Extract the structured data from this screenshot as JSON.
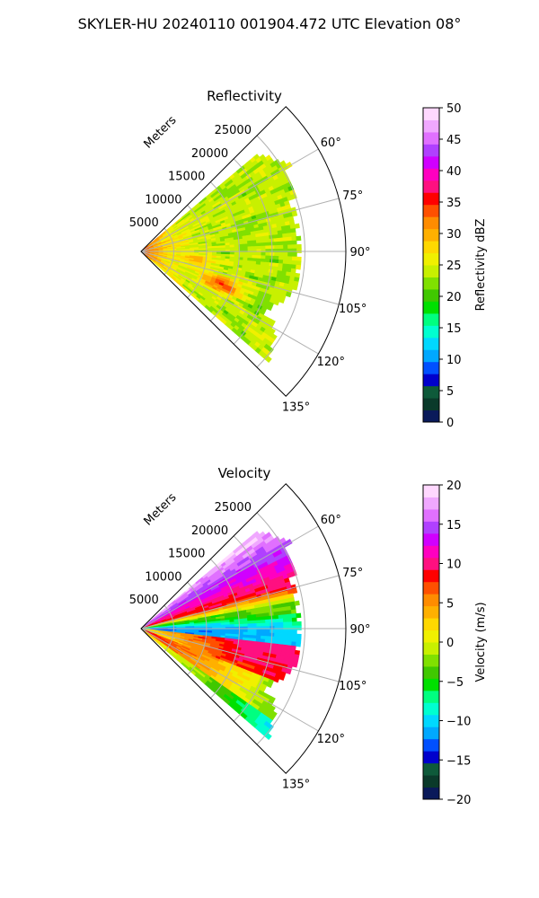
{
  "figure": {
    "suptitle": "SKYLER-HU  20240110  001904.472 UTC Elevation 08°"
  },
  "chart_data": [
    {
      "type": "heatmap",
      "projection": "polar-sector",
      "title": "Reflectivity",
      "radial_axis_label": "Meters",
      "range_rings": [
        5000,
        10000,
        15000,
        20000,
        25000
      ],
      "range_ring_labels": [
        "5000",
        "10000",
        "15000",
        "20000",
        "25000"
      ],
      "azimuth_range_deg": [
        45,
        135
      ],
      "azimuth_gridlines_deg": [
        60,
        75,
        90,
        105,
        120,
        135
      ],
      "azimuth_tick_labels": [
        "60°",
        "75°",
        "90°",
        "105°",
        "120°",
        "135°"
      ],
      "data_max_range_m": 25000,
      "grid": true,
      "colorbar": {
        "label": "Reflectivity dBZ",
        "min": 0,
        "max": 50,
        "ticks": [
          0,
          5,
          10,
          15,
          20,
          25,
          30,
          35,
          40,
          45,
          50
        ],
        "tick_labels": [
          "0",
          "5",
          "10",
          "15",
          "20",
          "25",
          "30",
          "35",
          "40",
          "45",
          "50"
        ],
        "colormap": "HomeyerRainbow-like",
        "colors": [
          "#0a1a5a",
          "#0a3a2a",
          "#0e5a3a",
          "#0000cc",
          "#0050ff",
          "#00a8ff",
          "#00d8ff",
          "#00ffd0",
          "#00ff80",
          "#00e000",
          "#40c800",
          "#80e000",
          "#c8f000",
          "#f0f000",
          "#ffd800",
          "#ffb000",
          "#ff8c00",
          "#ff5000",
          "#ff0000",
          "#ff1080",
          "#ff00c0",
          "#d000ff",
          "#b040ff",
          "#e070ff",
          "#f0a8ff",
          "#ffd8ff"
        ]
      },
      "field_description_levels": {
        "dominant_value_range": [
          18,
          27
        ],
        "near_radar_max": 38,
        "cell_near_110deg_max": 36
      }
    },
    {
      "type": "heatmap",
      "projection": "polar-sector",
      "title": "Velocity",
      "radial_axis_label": "Meters",
      "range_rings": [
        5000,
        10000,
        15000,
        20000,
        25000
      ],
      "range_ring_labels": [
        "5000",
        "10000",
        "15000",
        "20000",
        "25000"
      ],
      "azimuth_range_deg": [
        45,
        135
      ],
      "azimuth_gridlines_deg": [
        60,
        75,
        90,
        105,
        120,
        135
      ],
      "azimuth_tick_labels": [
        "60°",
        "75°",
        "90°",
        "105°",
        "120°",
        "135°"
      ],
      "data_max_range_m": 25000,
      "grid": true,
      "colorbar": {
        "label": "Velocity (m/s)",
        "min": -20,
        "max": 20,
        "ticks": [
          -20,
          -15,
          -10,
          -5,
          0,
          5,
          10,
          15,
          20
        ],
        "tick_labels": [
          "−20",
          "−15",
          "−10",
          "−5",
          "0",
          "5",
          "10",
          "15",
          "20"
        ],
        "colormap": "HomeyerRainbow-like",
        "colors": [
          "#0a1a5a",
          "#0a3a2a",
          "#0e5a3a",
          "#0000cc",
          "#0050ff",
          "#00a8ff",
          "#00d8ff",
          "#00ffd0",
          "#00ff80",
          "#00e000",
          "#40c800",
          "#80e000",
          "#c8f000",
          "#f0f000",
          "#ffd800",
          "#ffb000",
          "#ff8c00",
          "#ff5000",
          "#ff0000",
          "#ff1080",
          "#ff00c0",
          "#d000ff",
          "#b040ff",
          "#e070ff",
          "#f0a8ff",
          "#ffd8ff"
        ]
      },
      "field_description_levels": {
        "northern_sector_near_60deg": 15,
        "northern_sector_mid": 9,
        "band_near_80deg": -3,
        "band_near_90deg": -11,
        "southern_inner_near_120deg": 3,
        "southern_mid_near_105deg": 8,
        "southern_outer_near_130deg": -11
      }
    }
  ]
}
